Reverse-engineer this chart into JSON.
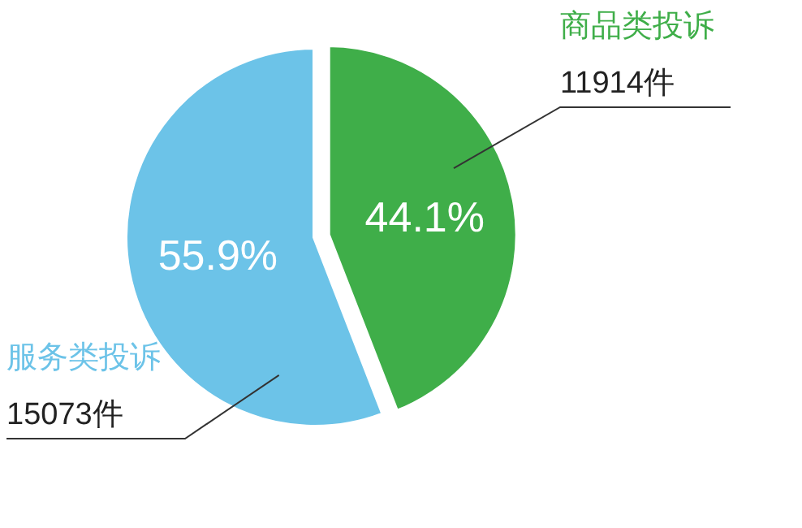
{
  "chart_data": {
    "type": "pie",
    "categories": [
      "商品类投诉",
      "服务类投诉"
    ],
    "values": [
      44.1,
      55.9
    ],
    "colors": [
      "#3fae49",
      "#6cc3e8"
    ],
    "value_labels": [
      "44.1%",
      "55.9%"
    ],
    "annotations": [
      "11914件",
      "15073件"
    ]
  }
}
